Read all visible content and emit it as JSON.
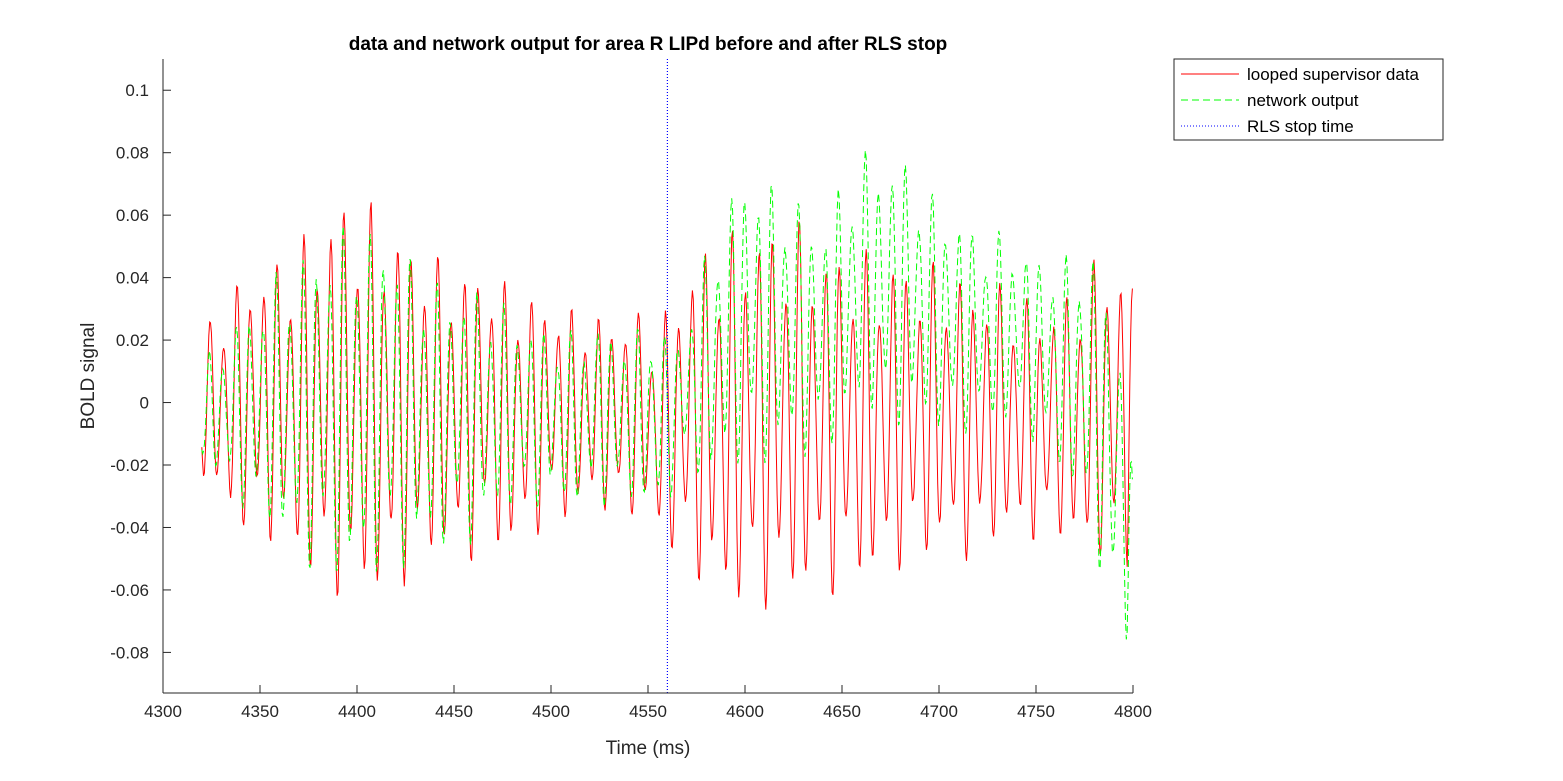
{
  "chart_data": {
    "type": "line",
    "title": "data and network output for area R LIPd before and after RLS stop",
    "xlabel": "Time (ms)",
    "ylabel": "BOLD signal",
    "xlim": [
      4300,
      4800
    ],
    "ylim": [
      -0.093,
      0.11
    ],
    "xticks": [
      "4300",
      "4350",
      "4400",
      "4450",
      "4500",
      "4550",
      "4600",
      "4650",
      "4700",
      "4750",
      "4800"
    ],
    "yticks": [
      "-0.08",
      "-0.06",
      "-0.04",
      "-0.02",
      "0",
      "0.02",
      "0.04",
      "0.06",
      "0.08",
      "0.1"
    ],
    "grid": false,
    "legend_position": "outside-top-right",
    "rls_stop_time": 4560,
    "series": [
      {
        "name": "looped supervisor data",
        "color": "#ff0000",
        "style": "solid",
        "x_range": [
          4320,
          4800
        ],
        "oscillation_period_ms": 6.9,
        "amplitude_envelope_points": [
          [
            4320,
            0.022
          ],
          [
            4335,
            0.035
          ],
          [
            4360,
            0.043
          ],
          [
            4380,
            0.055
          ],
          [
            4395,
            0.062
          ],
          [
            4420,
            0.055
          ],
          [
            4440,
            0.046
          ],
          [
            4460,
            0.043
          ],
          [
            4480,
            0.04
          ],
          [
            4500,
            0.033
          ],
          [
            4520,
            0.03
          ],
          [
            4540,
            0.03
          ],
          [
            4556,
            0.032
          ],
          [
            4566,
            0.042
          ],
          [
            4580,
            0.052
          ],
          [
            4600,
            0.058
          ],
          [
            4620,
            0.058
          ],
          [
            4640,
            0.052
          ],
          [
            4660,
            0.05
          ],
          [
            4680,
            0.047
          ],
          [
            4700,
            0.044
          ],
          [
            4720,
            0.042
          ],
          [
            4740,
            0.037
          ],
          [
            4760,
            0.036
          ],
          [
            4780,
            0.045
          ],
          [
            4800,
            0.046
          ]
        ],
        "offset_envelope_points": [
          [
            4320,
            0.0
          ],
          [
            4400,
            0.0
          ],
          [
            4500,
            -0.003
          ],
          [
            4560,
            -0.006
          ],
          [
            4600,
            -0.004
          ],
          [
            4700,
            -0.005
          ],
          [
            4800,
            -0.004
          ]
        ],
        "end_value": 0.037
      },
      {
        "name": "network output",
        "color": "#00ff00",
        "style": "dashed",
        "x_range": [
          4320,
          4800
        ],
        "oscillation_period_ms": 6.9,
        "amplitude_envelope_points": [
          [
            4320,
            0.015
          ],
          [
            4335,
            0.025
          ],
          [
            4360,
            0.04
          ],
          [
            4380,
            0.05
          ],
          [
            4400,
            0.055
          ],
          [
            4420,
            0.05
          ],
          [
            4440,
            0.04
          ],
          [
            4460,
            0.038
          ],
          [
            4480,
            0.03
          ],
          [
            4500,
            0.026
          ],
          [
            4520,
            0.026
          ],
          [
            4540,
            0.026
          ],
          [
            4556,
            0.03
          ],
          [
            4566,
            0.02
          ],
          [
            4580,
            0.035
          ],
          [
            4600,
            0.045
          ],
          [
            4620,
            0.04
          ],
          [
            4640,
            0.035
          ],
          [
            4660,
            0.04
          ],
          [
            4680,
            0.04
          ],
          [
            4700,
            0.035
          ],
          [
            4720,
            0.03
          ],
          [
            4740,
            0.028
          ],
          [
            4760,
            0.03
          ],
          [
            4780,
            0.045
          ],
          [
            4800,
            0.05
          ]
        ],
        "offset_envelope_points": [
          [
            4320,
            -0.002
          ],
          [
            4400,
            0.0
          ],
          [
            4500,
            -0.005
          ],
          [
            4560,
            -0.005
          ],
          [
            4580,
            0.012
          ],
          [
            4600,
            0.028
          ],
          [
            4640,
            0.022
          ],
          [
            4660,
            0.038
          ],
          [
            4680,
            0.035
          ],
          [
            4700,
            0.028
          ],
          [
            4720,
            0.022
          ],
          [
            4740,
            0.024
          ],
          [
            4760,
            0.012
          ],
          [
            4780,
            0.0
          ],
          [
            4790,
            -0.02
          ],
          [
            4800,
            -0.03
          ]
        ],
        "end_value": -0.03
      },
      {
        "name": "RLS stop time",
        "color": "#0000ff",
        "style": "dotted",
        "x": [
          4560,
          4560
        ],
        "y": [
          -0.093,
          0.11
        ]
      }
    ]
  }
}
